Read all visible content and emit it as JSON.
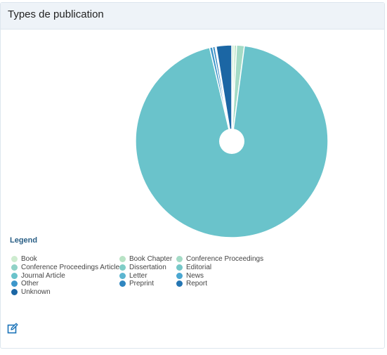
{
  "panel": {
    "title": "Types de publication"
  },
  "legend": {
    "title": "Legend"
  },
  "chart_data": {
    "type": "pie",
    "title": "Types de publication",
    "donut_hole": true,
    "categories": [
      "Book",
      "Book Chapter",
      "Conference Proceedings",
      "Conference Proceedings Article",
      "Dissertation",
      "Editorial",
      "Journal Article",
      "Letter",
      "News",
      "Other",
      "Preprint",
      "Report",
      "Unknown"
    ],
    "values": [
      0.4,
      0.4,
      1.3,
      0,
      0,
      0,
      94.2,
      0,
      0,
      0.5,
      0.4,
      0.2,
      2.6
    ],
    "colors": [
      "#cdeccf",
      "#b8e3c5",
      "#a4dbc6",
      "#90d2c7",
      "#80cdc7",
      "#75c7c8",
      "#6ac3cb",
      "#5cb5d0",
      "#4aa7d1",
      "#3d97cb",
      "#2f86c0",
      "#2576b3",
      "#1b66a4"
    ],
    "legend_position": "bottom-left"
  },
  "icons": {
    "edit": "edit-icon"
  }
}
